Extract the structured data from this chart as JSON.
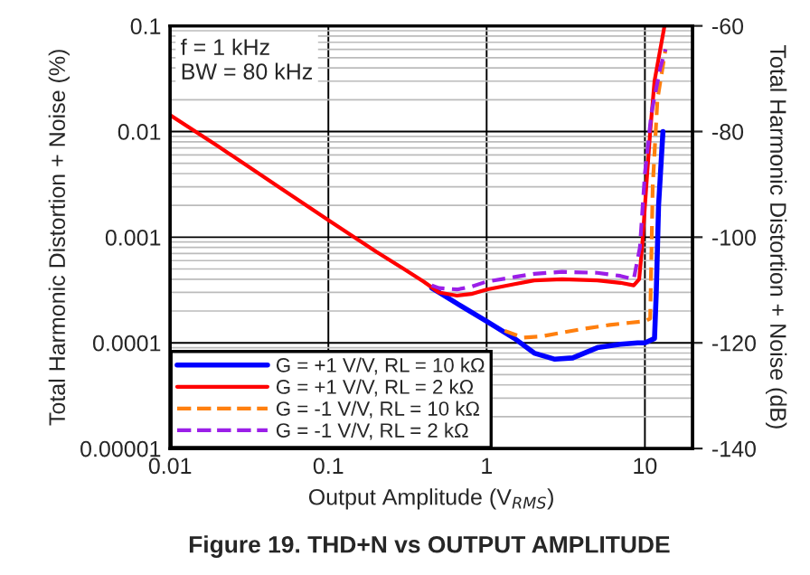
{
  "chart_data": {
    "type": "line",
    "title": "Figure 19. THD+N vs OUTPUT AMPLITUDE",
    "xlabel": "Output Amplitude (V$_{RMS}$)",
    "ylabel": "Total Harmonic Distortion + Noise (%)",
    "y2label": "Total Harmonic Distortion + Noise (dB)",
    "annotations": [
      "f = 1 kHz\nBW = 80 kHz"
    ],
    "log": "xy",
    "grid": true,
    "legend": "bottom left",
    "xlim": [
      0.01,
      20
    ],
    "xticks": [
      0.01,
      0.1,
      1,
      10
    ],
    "ylim": [
      1e-05,
      0.1
    ],
    "yticks": [
      {
        "value": 1e-05,
        "label": "0.00001"
      },
      0.0001,
      0.001,
      0.01,
      0.1
    ],
    "y2lim": [
      -140,
      -60
    ],
    "y2ticks": [
      -140,
      -120,
      -100,
      -80,
      -60
    ],
    "series": [
      {
        "name": "G = +1 V/V, RL = 10 kΩ",
        "color": "#0000ff",
        "line_style": "solid",
        "x": [
          0.45,
          0.5,
          0.7,
          1,
          1.5,
          2,
          2.7,
          3.5,
          5,
          7,
          9,
          10,
          11.5,
          11.8,
          12.2,
          13
        ],
        "values": [
          0.00033,
          0.0003,
          0.00022,
          0.00016,
          0.00011,
          8e-05,
          7e-05,
          7.2e-05,
          9e-05,
          9.7e-05,
          0.0001,
          0.0001,
          0.00011,
          0.0003,
          0.002,
          0.01
        ]
      },
      {
        "name": "G = +1 V/V, RL = 2 kΩ",
        "color": "#ff0000",
        "line_style": "solid",
        "x": [
          0.01,
          0.02,
          0.05,
          0.1,
          0.2,
          0.3,
          0.4,
          0.5,
          0.65,
          0.8,
          1,
          1.5,
          2,
          3,
          5,
          7,
          8.5,
          9.2,
          9.6,
          10.2,
          10.8,
          11.5,
          12.5,
          13.3
        ],
        "values": [
          0.0143,
          0.0073,
          0.0029,
          0.00145,
          0.00073,
          0.0005,
          0.00038,
          0.0003,
          0.00028,
          0.00029,
          0.00032,
          0.00036,
          0.00039,
          0.0004,
          0.00039,
          0.00037,
          0.00035,
          0.0004,
          0.0008,
          0.003,
          0.01,
          0.03,
          0.06,
          0.1
        ]
      },
      {
        "name": "G = -1 V/V, RL = 10 kΩ",
        "color": "#ff7f0e",
        "line_style": "dashed",
        "x": [
          1.3,
          1.7,
          2.2,
          3,
          4,
          6,
          8,
          10,
          10.8,
          11.2,
          12,
          13.5
        ],
        "values": [
          0.00013,
          0.000112,
          0.000115,
          0.000125,
          0.000135,
          0.000148,
          0.000155,
          0.00016,
          0.00017,
          0.003,
          0.02,
          0.06
        ]
      },
      {
        "name": "G = -1 V/V, RL = 2 kΩ",
        "color": "#9b1fe8",
        "line_style": "dashed",
        "x": [
          0.45,
          0.5,
          0.65,
          0.8,
          1,
          1.5,
          2,
          3,
          5,
          7,
          8.5,
          9.3,
          10,
          11,
          12.5,
          13.5
        ],
        "values": [
          0.00035,
          0.00033,
          0.00032,
          0.00034,
          0.00038,
          0.00042,
          0.00045,
          0.00047,
          0.00046,
          0.00043,
          0.0004,
          0.0008,
          0.004,
          0.015,
          0.04,
          0.06
        ]
      }
    ]
  }
}
